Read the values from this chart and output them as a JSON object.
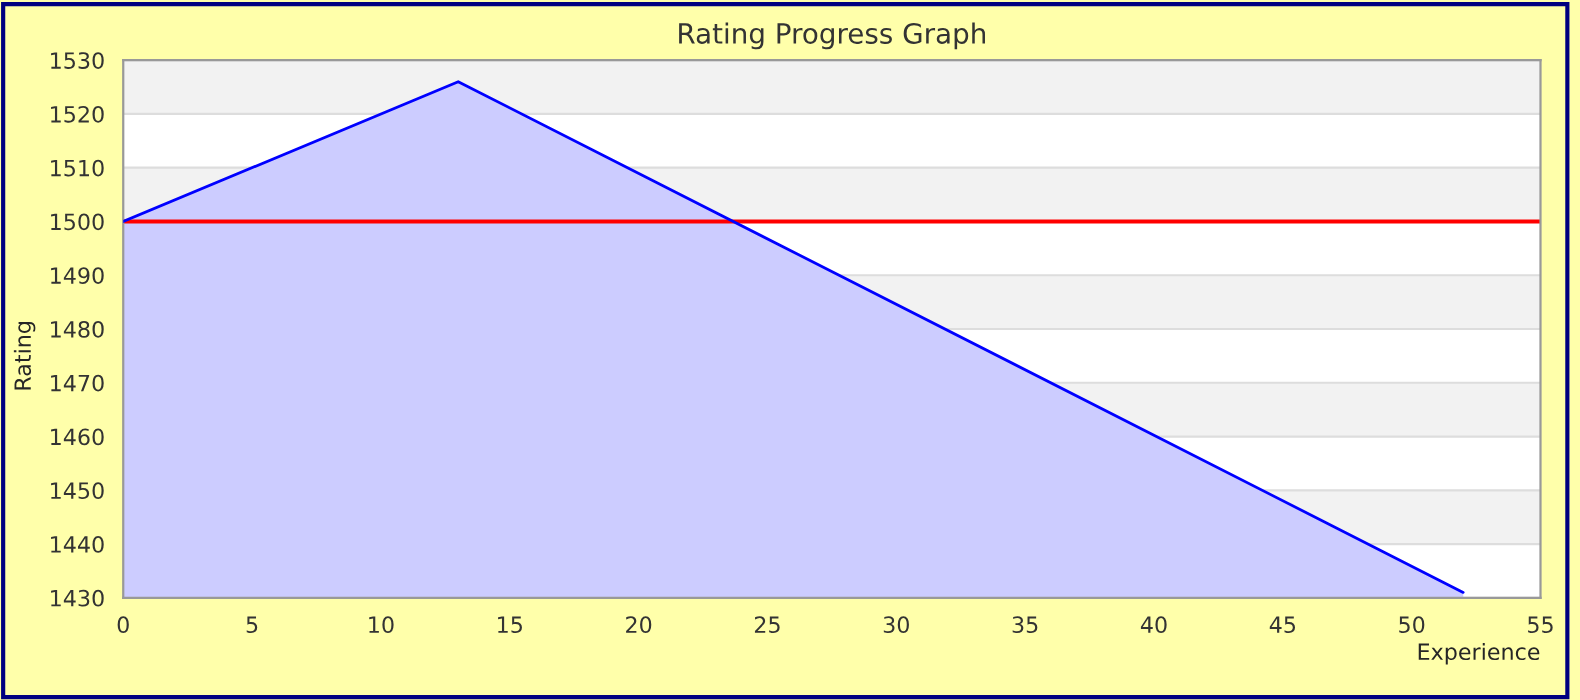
{
  "chart_data": {
    "type": "area",
    "title": "Rating Progress Graph",
    "xlabel": "Experience",
    "ylabel": "Rating",
    "series": [
      {
        "color": "#0000ff",
        "x": [
          0,
          13,
          52
        ],
        "values": [
          1500,
          1526,
          1431
        ]
      }
    ],
    "xlim": [
      0,
      55
    ],
    "xticks": [
      0,
      5,
      10,
      15,
      20,
      25,
      30,
      35,
      40,
      45,
      50,
      55
    ],
    "ylim": [
      1430,
      1530
    ],
    "yticks": [
      1430,
      1440,
      1450,
      1460,
      1470,
      1480,
      1490,
      1500,
      1510,
      1520,
      1530
    ],
    "ref_lines": [
      {
        "axis": "y",
        "value": 1500,
        "color": "#ff0000"
      }
    ],
    "grid": "y",
    "legend": false
  }
}
